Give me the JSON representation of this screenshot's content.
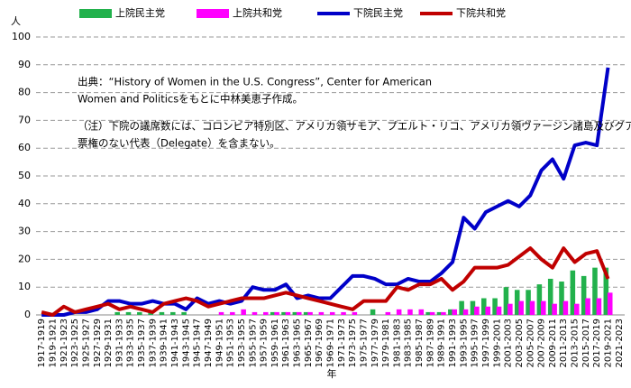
{
  "chart_data": {
    "type": "combo",
    "y_label": "人",
    "x_label": "年",
    "annotations": [
      [
        "出典：“History of Women in the U.S. Congress”, Center for American",
        "Women and Politicsをもとに中林美恵子作成。"
      ],
      [
        "（注）下院の議席数には、コロンビア特別区、アメリカ領サモア、プエルト・リコ、アメリカ領ヴァージン諸島及びグアムより選出される、投",
        "票権のない代表（Delegate）を含まない。"
      ]
    ],
    "categories": [
      "1917-1919",
      "1919-1921",
      "1921-1923",
      "1923-1925",
      "1925-1927",
      "1927-1929",
      "1929-1931",
      "1931-1933",
      "1933-1935",
      "1935-1937",
      "1937-1939",
      "1939-1941",
      "1941-1943",
      "1943-1945",
      "1945-1947",
      "1947-1949",
      "1949-1951",
      "1951-1953",
      "1953-1955",
      "1955-1957",
      "1957-1959",
      "1959-1961",
      "1961-1963",
      "1963-1965",
      "1965-1967",
      "1967-1969",
      "1969-1971",
      "1971-1973",
      "1973-1975",
      "1975-1977",
      "1977-1979",
      "1979-1981",
      "1981-1983",
      "1983-1985",
      "1985-1987",
      "1987-1989",
      "1989-1991",
      "1991-1993",
      "1993-1995",
      "1995-1997",
      "1997-1999",
      "1999-2001",
      "2001-2003",
      "2003-2005",
      "2005-2007",
      "2007-2009",
      "2009-2011",
      "2011-2013",
      "2013-2015",
      "2015-2017",
      "2017-2019",
      "2019-2021",
      "2021-2023"
    ],
    "series": [
      {
        "name": "上院民主党",
        "type": "bar",
        "color": "#22b14c",
        "values": [
          0,
          0,
          0,
          0,
          0,
          0,
          0,
          1,
          1,
          1,
          1,
          1,
          1,
          1,
          0,
          0,
          0,
          0,
          0,
          0,
          0,
          1,
          1,
          1,
          1,
          0,
          0,
          0,
          0,
          0,
          2,
          0,
          0,
          0,
          0,
          1,
          1,
          2,
          5,
          5,
          6,
          6,
          10,
          9,
          9,
          11,
          13,
          12,
          16,
          14,
          17,
          17,
          null
        ]
      },
      {
        "name": "上院共和党",
        "type": "bar",
        "color": "#ff00ff",
        "values": [
          0,
          0,
          0,
          0,
          0,
          0,
          0,
          0,
          0,
          0,
          0,
          0,
          0,
          0,
          0,
          0,
          1,
          1,
          2,
          1,
          1,
          1,
          1,
          1,
          1,
          1,
          1,
          1,
          1,
          0,
          0,
          1,
          2,
          2,
          2,
          1,
          1,
          2,
          2,
          3,
          3,
          3,
          4,
          5,
          5,
          5,
          4,
          5,
          4,
          6,
          6,
          8,
          null
        ]
      },
      {
        "name": "下院民主党",
        "type": "line",
        "color": "#0000c8",
        "values": [
          0,
          0,
          0,
          1,
          1,
          2,
          5,
          5,
          4,
          4,
          5,
          4,
          4,
          2,
          6,
          4,
          5,
          4,
          5,
          10,
          9,
          9,
          11,
          6,
          7,
          6,
          6,
          10,
          14,
          14,
          13,
          11,
          11,
          13,
          12,
          12,
          15,
          19,
          35,
          31,
          37,
          39,
          41,
          39,
          43,
          52,
          56,
          49,
          61,
          62,
          61,
          89,
          null
        ]
      },
      {
        "name": "下院共和党",
        "type": "line",
        "color": "#c00000",
        "values": [
          1,
          0,
          3,
          1,
          2,
          3,
          4,
          2,
          3,
          2,
          1,
          4,
          5,
          6,
          5,
          3,
          4,
          5,
          6,
          6,
          6,
          7,
          8,
          7,
          6,
          5,
          4,
          3,
          2,
          5,
          5,
          5,
          10,
          9,
          11,
          11,
          13,
          9,
          12,
          17,
          17,
          17,
          18,
          21,
          24,
          20,
          17,
          24,
          19,
          22,
          23,
          13,
          null
        ]
      }
    ],
    "ylim": [
      0,
      100
    ],
    "yticks": [
      0,
      10,
      20,
      30,
      40,
      50,
      60,
      70,
      80,
      90,
      100
    ],
    "grid": true
  }
}
